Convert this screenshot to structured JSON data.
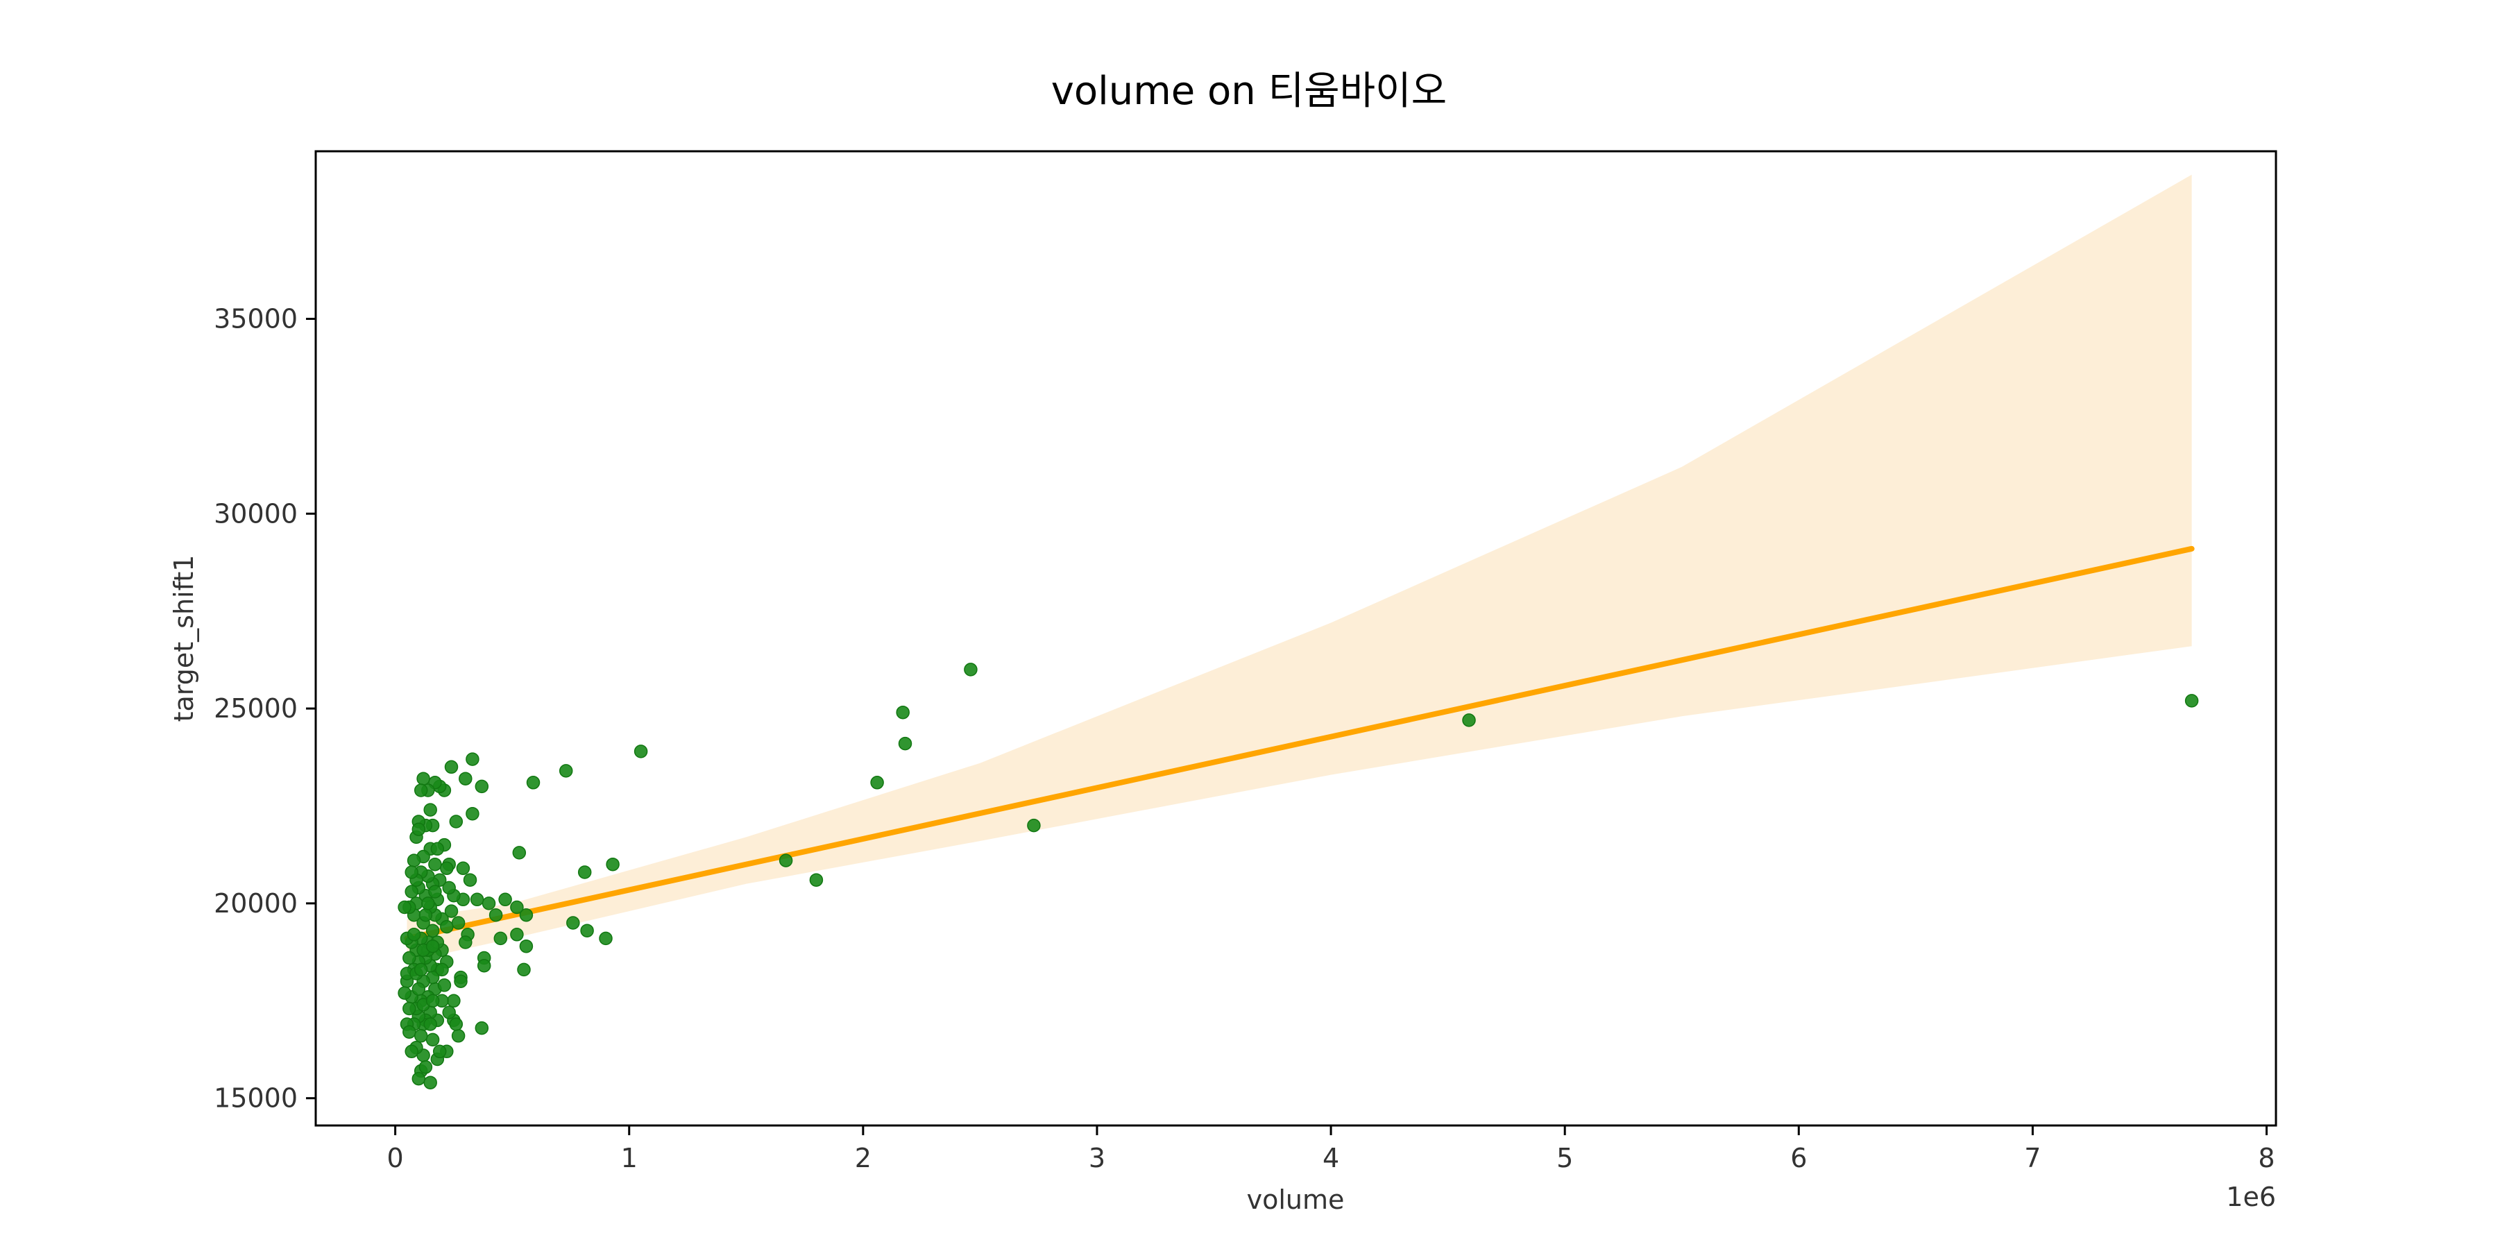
{
  "chart_data": {
    "type": "scatter",
    "title": "volume on 티움바이오",
    "xlabel": "volume",
    "ylabel": "target_shift1",
    "x_offset_label": "1e6",
    "xlim": [
      -0.34,
      8.04
    ],
    "ylim": [
      14300,
      39300
    ],
    "x_ticks": [
      0,
      1,
      2,
      3,
      4,
      5,
      6,
      7,
      8
    ],
    "x_tick_labels": [
      "0",
      "1",
      "2",
      "3",
      "4",
      "5",
      "6",
      "7",
      "8"
    ],
    "y_ticks": [
      15000,
      20000,
      25000,
      30000,
      35000
    ],
    "y_tick_labels": [
      "15000",
      "20000",
      "25000",
      "30000",
      "35000"
    ],
    "grid": false,
    "point_color": "#1a8a1a",
    "line_color": "#ffa500",
    "band_color": "#fdebd0",
    "regression_line": {
      "x": [
        0.05,
        7.68
      ],
      "y": [
        19100,
        29100
      ]
    },
    "confidence_band": {
      "x": [
        0.05,
        0.5,
        1.5,
        2.5,
        4.0,
        5.5,
        7.68
      ],
      "upper": [
        19600,
        20000,
        21700,
        23600,
        27200,
        31200,
        38700
      ],
      "lower": [
        18500,
        19100,
        20500,
        21600,
        23300,
        24800,
        26600
      ]
    },
    "points": [
      [
        7.68,
        25200
      ],
      [
        4.59,
        24700
      ],
      [
        2.73,
        22000
      ],
      [
        2.46,
        26000
      ],
      [
        2.17,
        24900
      ],
      [
        2.18,
        24100
      ],
      [
        2.06,
        23100
      ],
      [
        1.8,
        20600
      ],
      [
        1.67,
        21100
      ],
      [
        1.05,
        23900
      ],
      [
        0.93,
        21000
      ],
      [
        0.9,
        19100
      ],
      [
        0.81,
        20800
      ],
      [
        0.82,
        19300
      ],
      [
        0.76,
        19500
      ],
      [
        0.73,
        23400
      ],
      [
        0.59,
        23100
      ],
      [
        0.56,
        18900
      ],
      [
        0.55,
        18300
      ],
      [
        0.56,
        19700
      ],
      [
        0.53,
        21300
      ],
      [
        0.52,
        19900
      ],
      [
        0.52,
        19200
      ],
      [
        0.47,
        20100
      ],
      [
        0.45,
        19100
      ],
      [
        0.43,
        19700
      ],
      [
        0.4,
        20000
      ],
      [
        0.38,
        18600
      ],
      [
        0.38,
        18400
      ],
      [
        0.37,
        16800
      ],
      [
        0.37,
        23000
      ],
      [
        0.35,
        20100
      ],
      [
        0.33,
        23700
      ],
      [
        0.33,
        22300
      ],
      [
        0.32,
        20600
      ],
      [
        0.31,
        19200
      ],
      [
        0.3,
        19000
      ],
      [
        0.3,
        23200
      ],
      [
        0.29,
        20100
      ],
      [
        0.29,
        20900
      ],
      [
        0.28,
        18100
      ],
      [
        0.28,
        18000
      ],
      [
        0.27,
        16600
      ],
      [
        0.26,
        22100
      ],
      [
        0.25,
        17500
      ],
      [
        0.25,
        17000
      ],
      [
        0.25,
        20200
      ],
      [
        0.24,
        23500
      ],
      [
        0.23,
        21000
      ],
      [
        0.23,
        20400
      ],
      [
        0.22,
        18500
      ],
      [
        0.22,
        16200
      ],
      [
        0.22,
        20900
      ],
      [
        0.21,
        22900
      ],
      [
        0.21,
        21500
      ],
      [
        0.2,
        19600
      ],
      [
        0.2,
        18800
      ],
      [
        0.2,
        17500
      ],
      [
        0.19,
        23000
      ],
      [
        0.19,
        20600
      ],
      [
        0.18,
        20100
      ],
      [
        0.18,
        18300
      ],
      [
        0.18,
        17000
      ],
      [
        0.18,
        16000
      ],
      [
        0.17,
        23100
      ],
      [
        0.17,
        21000
      ],
      [
        0.17,
        19700
      ],
      [
        0.17,
        18700
      ],
      [
        0.17,
        17800
      ],
      [
        0.16,
        22000
      ],
      [
        0.16,
        20500
      ],
      [
        0.16,
        19300
      ],
      [
        0.16,
        18100
      ],
      [
        0.16,
        16500
      ],
      [
        0.15,
        15400
      ],
      [
        0.15,
        21400
      ],
      [
        0.15,
        19900
      ],
      [
        0.15,
        18400
      ],
      [
        0.15,
        17200
      ],
      [
        0.14,
        22900
      ],
      [
        0.14,
        20700
      ],
      [
        0.14,
        19000
      ],
      [
        0.14,
        17600
      ],
      [
        0.13,
        22000
      ],
      [
        0.13,
        20200
      ],
      [
        0.13,
        18600
      ],
      [
        0.13,
        17000
      ],
      [
        0.12,
        16100
      ],
      [
        0.12,
        23200
      ],
      [
        0.12,
        21200
      ],
      [
        0.12,
        19500
      ],
      [
        0.12,
        18000
      ],
      [
        0.12,
        16900
      ],
      [
        0.11,
        22900
      ],
      [
        0.11,
        20800
      ],
      [
        0.11,
        19100
      ],
      [
        0.11,
        17500
      ],
      [
        0.11,
        15700
      ],
      [
        0.1,
        22100
      ],
      [
        0.1,
        20400
      ],
      [
        0.1,
        18500
      ],
      [
        0.1,
        17100
      ],
      [
        0.1,
        15500
      ],
      [
        0.09,
        21700
      ],
      [
        0.09,
        20000
      ],
      [
        0.09,
        18800
      ],
      [
        0.09,
        17300
      ],
      [
        0.09,
        16300
      ],
      [
        0.08,
        21100
      ],
      [
        0.08,
        19700
      ],
      [
        0.08,
        18300
      ],
      [
        0.08,
        16900
      ],
      [
        0.07,
        20300
      ],
      [
        0.07,
        19000
      ],
      [
        0.07,
        17600
      ],
      [
        0.07,
        16200
      ],
      [
        0.06,
        19900
      ],
      [
        0.06,
        18600
      ],
      [
        0.06,
        17300
      ],
      [
        0.05,
        19100
      ],
      [
        0.05,
        18000
      ],
      [
        0.05,
        16900
      ],
      [
        0.04,
        19900
      ],
      [
        0.04,
        17700
      ],
      [
        0.05,
        18200
      ],
      [
        0.06,
        16700
      ],
      [
        0.08,
        19200
      ],
      [
        0.09,
        18200
      ],
      [
        0.1,
        17800
      ],
      [
        0.11,
        18300
      ],
      [
        0.12,
        17400
      ],
      [
        0.13,
        19700
      ],
      [
        0.14,
        18800
      ],
      [
        0.15,
        16900
      ],
      [
        0.16,
        17500
      ],
      [
        0.17,
        20300
      ],
      [
        0.18,
        19000
      ],
      [
        0.19,
        16200
      ],
      [
        0.2,
        18300
      ],
      [
        0.21,
        17900
      ],
      [
        0.22,
        19400
      ],
      [
        0.23,
        17200
      ],
      [
        0.24,
        19800
      ],
      [
        0.26,
        16900
      ],
      [
        0.27,
        19500
      ],
      [
        0.09,
        20600
      ],
      [
        0.1,
        21900
      ],
      [
        0.11,
        16600
      ],
      [
        0.12,
        18800
      ],
      [
        0.13,
        15800
      ],
      [
        0.14,
        20000
      ],
      [
        0.15,
        22400
      ],
      [
        0.16,
        18900
      ],
      [
        0.18,
        21400
      ],
      [
        0.07,
        20800
      ]
    ]
  }
}
